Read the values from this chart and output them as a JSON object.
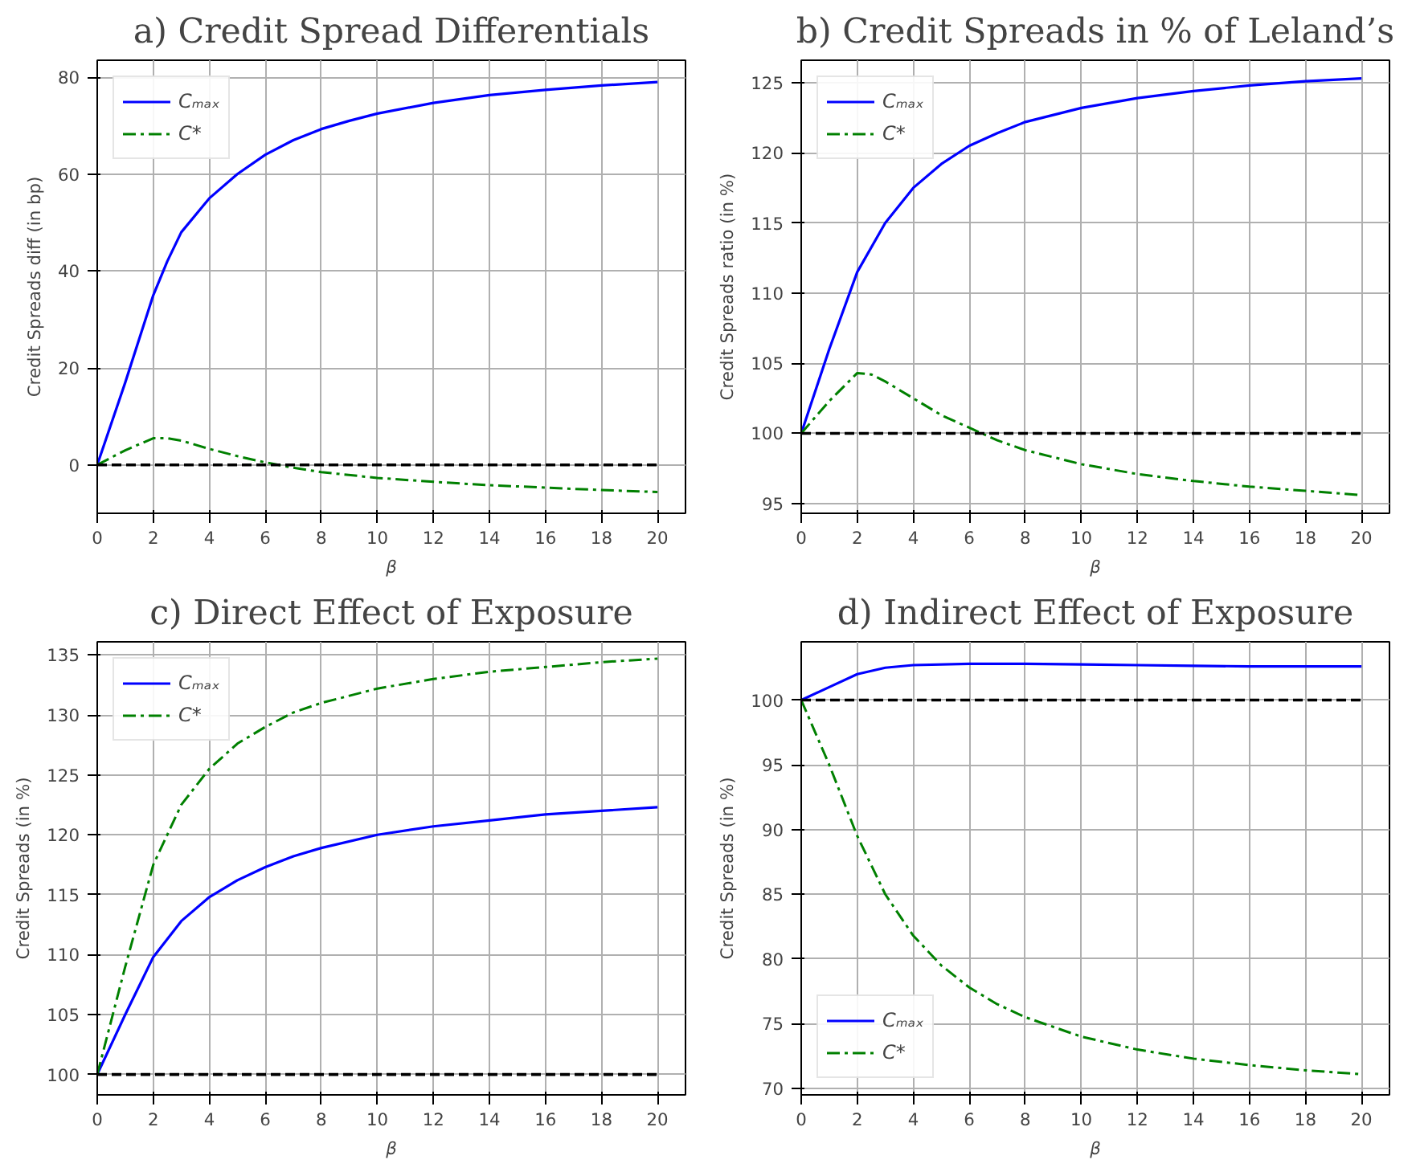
{
  "chart_data": [
    {
      "type": "line",
      "title": "a) Credit Spread Differentials",
      "xlabel": "β",
      "ylabel": "Credit Spreads diff (in bp)",
      "xlim": [
        0,
        21
      ],
      "ylim": [
        -10,
        83.5
      ],
      "xticks": [
        0,
        2,
        4,
        6,
        8,
        10,
        12,
        14,
        16,
        18,
        20
      ],
      "yticks": [
        0,
        20,
        40,
        60,
        80
      ],
      "grid": true,
      "legend": "top left",
      "series": [
        {
          "name": "Cₘₐₓ",
          "color": "#0000ff",
          "line_style": "solid",
          "x": [
            0,
            1,
            2,
            2.5,
            3,
            4,
            5,
            6,
            7,
            8,
            9,
            10,
            12,
            14,
            16,
            18,
            20
          ],
          "values": [
            0,
            17,
            35,
            42,
            48,
            55,
            60,
            64,
            67,
            69.3,
            71,
            72.5,
            74.7,
            76.3,
            77.4,
            78.3,
            79
          ]
        },
        {
          "name": "C*",
          "color": "#008000",
          "line_style": "dashdot",
          "x": [
            0,
            1,
            2,
            2.5,
            3,
            4,
            5,
            6,
            7,
            8,
            10,
            12,
            14,
            16,
            18,
            20
          ],
          "values": [
            0,
            3,
            5.5,
            5.5,
            5,
            3.3,
            1.8,
            0.5,
            -0.6,
            -1.5,
            -2.7,
            -3.5,
            -4.2,
            -4.7,
            -5.2,
            -5.6
          ]
        },
        {
          "color": "#000000",
          "line_style": "dashed",
          "x": [
            0,
            20
          ],
          "values": [
            0,
            0
          ]
        }
      ]
    },
    {
      "type": "line",
      "title": "b) Credit Spreads in % of Leland’s",
      "xlabel": "β",
      "ylabel": "Credit Spreads ratio (in %)",
      "xlim": [
        0,
        21
      ],
      "ylim": [
        94.3,
        126.6
      ],
      "xticks": [
        0,
        2,
        4,
        6,
        8,
        10,
        12,
        14,
        16,
        18,
        20
      ],
      "yticks": [
        95,
        100,
        105,
        110,
        115,
        120,
        125
      ],
      "grid": true,
      "legend": "top left",
      "series": [
        {
          "name": "Cₘₐₓ",
          "color": "#0000ff",
          "line_style": "solid",
          "x": [
            0,
            1,
            2,
            3,
            4,
            5,
            6,
            7,
            8,
            10,
            12,
            14,
            16,
            18,
            20
          ],
          "values": [
            100,
            106,
            111.5,
            115,
            117.5,
            119.2,
            120.5,
            121.4,
            122.2,
            123.2,
            123.9,
            124.4,
            124.8,
            125.1,
            125.3
          ]
        },
        {
          "name": "C*",
          "color": "#008000",
          "line_style": "dashdot",
          "x": [
            0,
            1,
            2,
            2.5,
            3,
            4,
            5,
            6,
            7,
            8,
            10,
            12,
            14,
            16,
            18,
            20
          ],
          "values": [
            100,
            102.3,
            104.3,
            104.2,
            103.7,
            102.5,
            101.3,
            100.4,
            99.5,
            98.8,
            97.8,
            97.1,
            96.6,
            96.2,
            95.9,
            95.6
          ]
        },
        {
          "color": "#000000",
          "line_style": "dashed",
          "x": [
            0,
            20
          ],
          "values": [
            100,
            100
          ]
        }
      ]
    },
    {
      "type": "line",
      "title": "c) Direct Effect of Exposure",
      "xlabel": "β",
      "ylabel": "Credit Spreads (in %)",
      "xlim": [
        0,
        21
      ],
      "ylim": [
        98.3,
        136.1
      ],
      "xticks": [
        0,
        2,
        4,
        6,
        8,
        10,
        12,
        14,
        16,
        18,
        20
      ],
      "yticks": [
        100,
        105,
        110,
        115,
        120,
        125,
        130,
        135
      ],
      "grid": true,
      "legend": "top left",
      "series": [
        {
          "name": "Cₘₐₓ",
          "color": "#0000ff",
          "line_style": "solid",
          "x": [
            0,
            1,
            2,
            3,
            4,
            5,
            6,
            7,
            8,
            10,
            12,
            14,
            16,
            18,
            20
          ],
          "values": [
            100,
            105,
            109.8,
            112.8,
            114.8,
            116.2,
            117.3,
            118.2,
            118.9,
            120,
            120.7,
            121.2,
            121.7,
            122,
            122.3
          ]
        },
        {
          "name": "C*",
          "color": "#008000",
          "line_style": "dashdot",
          "x": [
            0,
            1,
            2,
            3,
            4,
            5,
            6,
            7,
            8,
            10,
            12,
            14,
            16,
            18,
            20
          ],
          "values": [
            100,
            109,
            117.5,
            122.5,
            125.5,
            127.6,
            129,
            130.2,
            131,
            132.2,
            133,
            133.6,
            134,
            134.4,
            134.7
          ]
        },
        {
          "color": "#000000",
          "line_style": "dashed",
          "x": [
            0,
            20
          ],
          "values": [
            100,
            100
          ]
        }
      ]
    },
    {
      "type": "line",
      "title": "d) Indirect Effect of Exposure",
      "xlabel": "β",
      "ylabel": "Credit Spreads (in %)",
      "xlim": [
        0,
        21
      ],
      "ylim": [
        69.5,
        104.5
      ],
      "xticks": [
        0,
        2,
        4,
        6,
        8,
        10,
        12,
        14,
        16,
        18,
        20
      ],
      "yticks": [
        70,
        75,
        80,
        85,
        90,
        95,
        100
      ],
      "grid": true,
      "legend": "bottom left",
      "series": [
        {
          "name": "Cₘₐₓ",
          "color": "#0000ff",
          "line_style": "solid",
          "x": [
            0,
            1,
            2,
            3,
            4,
            6,
            8,
            10,
            12,
            14,
            16,
            18,
            20
          ],
          "values": [
            100,
            101,
            102,
            102.5,
            102.7,
            102.8,
            102.8,
            102.75,
            102.7,
            102.65,
            102.6,
            102.6,
            102.6
          ]
        },
        {
          "name": "C*",
          "color": "#008000",
          "line_style": "dashdot",
          "x": [
            0,
            1,
            2,
            3,
            4,
            5,
            6,
            7,
            8,
            10,
            12,
            14,
            16,
            18,
            20
          ],
          "values": [
            100,
            95,
            89.5,
            85,
            81.8,
            79.5,
            77.8,
            76.5,
            75.5,
            74,
            73,
            72.3,
            71.8,
            71.4,
            71.1
          ]
        },
        {
          "color": "#000000",
          "line_style": "dashed",
          "x": [
            0,
            20
          ],
          "values": [
            100,
            100
          ]
        }
      ]
    }
  ]
}
